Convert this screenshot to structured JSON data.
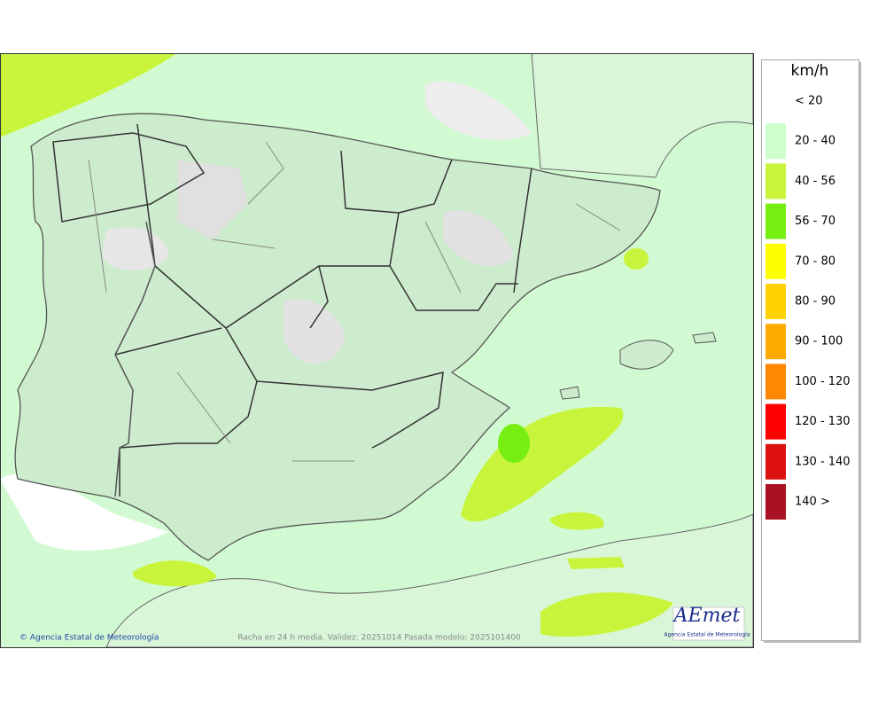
{
  "legend": {
    "title": "km/h",
    "items": [
      {
        "label": "< 20",
        "color": "#ffffff"
      },
      {
        "label": "20 - 40",
        "color": "#ccffcc"
      },
      {
        "label": "40 - 56",
        "color": "#c8f53c"
      },
      {
        "label": "56 - 70",
        "color": "#77ee11"
      },
      {
        "label": "70 - 80",
        "color": "#ffff00"
      },
      {
        "label": "80 - 90",
        "color": "#ffd200"
      },
      {
        "label": "90 - 100",
        "color": "#ffaa00"
      },
      {
        "label": "100 - 120",
        "color": "#ff8800"
      },
      {
        "label": "120 - 130",
        "color": "#ff0000"
      },
      {
        "label": "130 - 140",
        "color": "#dd1111"
      },
      {
        "label": "140 >",
        "color": "#aa1122"
      }
    ]
  },
  "footer": {
    "credit": "© Agencia Estatal de Meteorología",
    "caption": "Racha en 24 h media. Validez: 20251014 Pasada modelo: 2025101400"
  },
  "logo": {
    "name": "AEmet",
    "subtitle": "Agencia Estatal de Meteorología"
  }
}
